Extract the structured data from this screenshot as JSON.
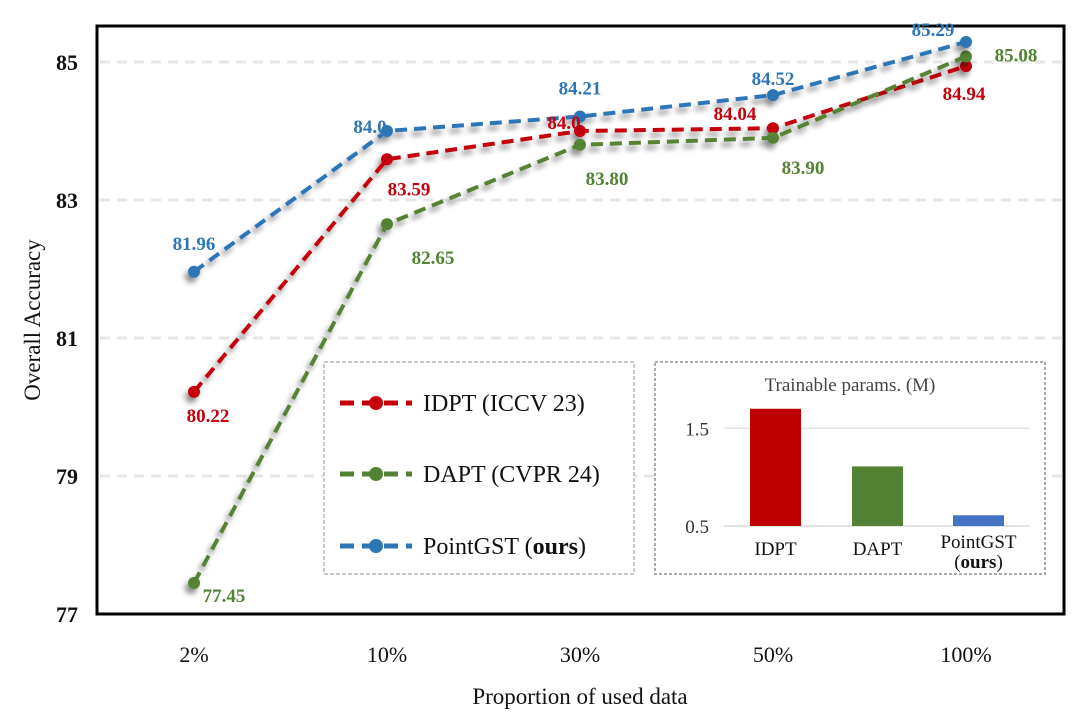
{
  "chart_data": {
    "type": "line",
    "title": "",
    "xlabel": "Proportion of used data",
    "ylabel": "Overall Accuracy",
    "categories": [
      "2%",
      "10%",
      "30%",
      "50%",
      "100%"
    ],
    "ylim": [
      77,
      85.5
    ],
    "yticks": [
      77,
      79,
      81,
      83,
      85
    ],
    "grid": true,
    "series": [
      {
        "name": "IDPT (ICCV 23)",
        "color": "#C5000B",
        "values": [
          80.22,
          83.59,
          84.0,
          84.04,
          84.94
        ],
        "labels": [
          "80.22",
          "83.59",
          "84.0",
          "84.04",
          "84.94"
        ]
      },
      {
        "name": "DAPT (CVPR 24)",
        "color": "#548235",
        "values": [
          77.45,
          82.65,
          83.8,
          83.9,
          85.08
        ],
        "labels": [
          "77.45",
          "82.65",
          "83.80",
          "83.90",
          "85.08"
        ]
      },
      {
        "name": "PointGST (ours)",
        "color": "#2E75B6",
        "values": [
          81.96,
          84.0,
          84.21,
          84.52,
          85.29
        ],
        "labels": [
          "81.96",
          "84.0",
          "84.21",
          "84.52",
          "85.29"
        ]
      }
    ],
    "legend": {
      "placement": "bottom-center",
      "entries": [
        {
          "text": "IDPT (ICCV 23)",
          "bold_suffix": ""
        },
        {
          "text": "DAPT (CVPR 24)",
          "bold_suffix": ""
        },
        {
          "text": "PointGST (",
          "bold_suffix": "ours",
          "tail": ")"
        }
      ]
    },
    "inset": {
      "type": "bar",
      "placement": "bottom-right",
      "title": "Trainable params. (M)",
      "categories": [
        "IDPT",
        "DAPT",
        "PointGST"
      ],
      "category_sublabels": [
        "",
        "",
        "(ours)"
      ],
      "values": [
        1.7,
        1.11,
        0.61
      ],
      "colors": [
        "#C00000",
        "#548235",
        "#4472C4"
      ],
      "yticks": [
        "1.5",
        "0.5"
      ],
      "ylim": [
        0.5,
        1.8
      ]
    }
  }
}
